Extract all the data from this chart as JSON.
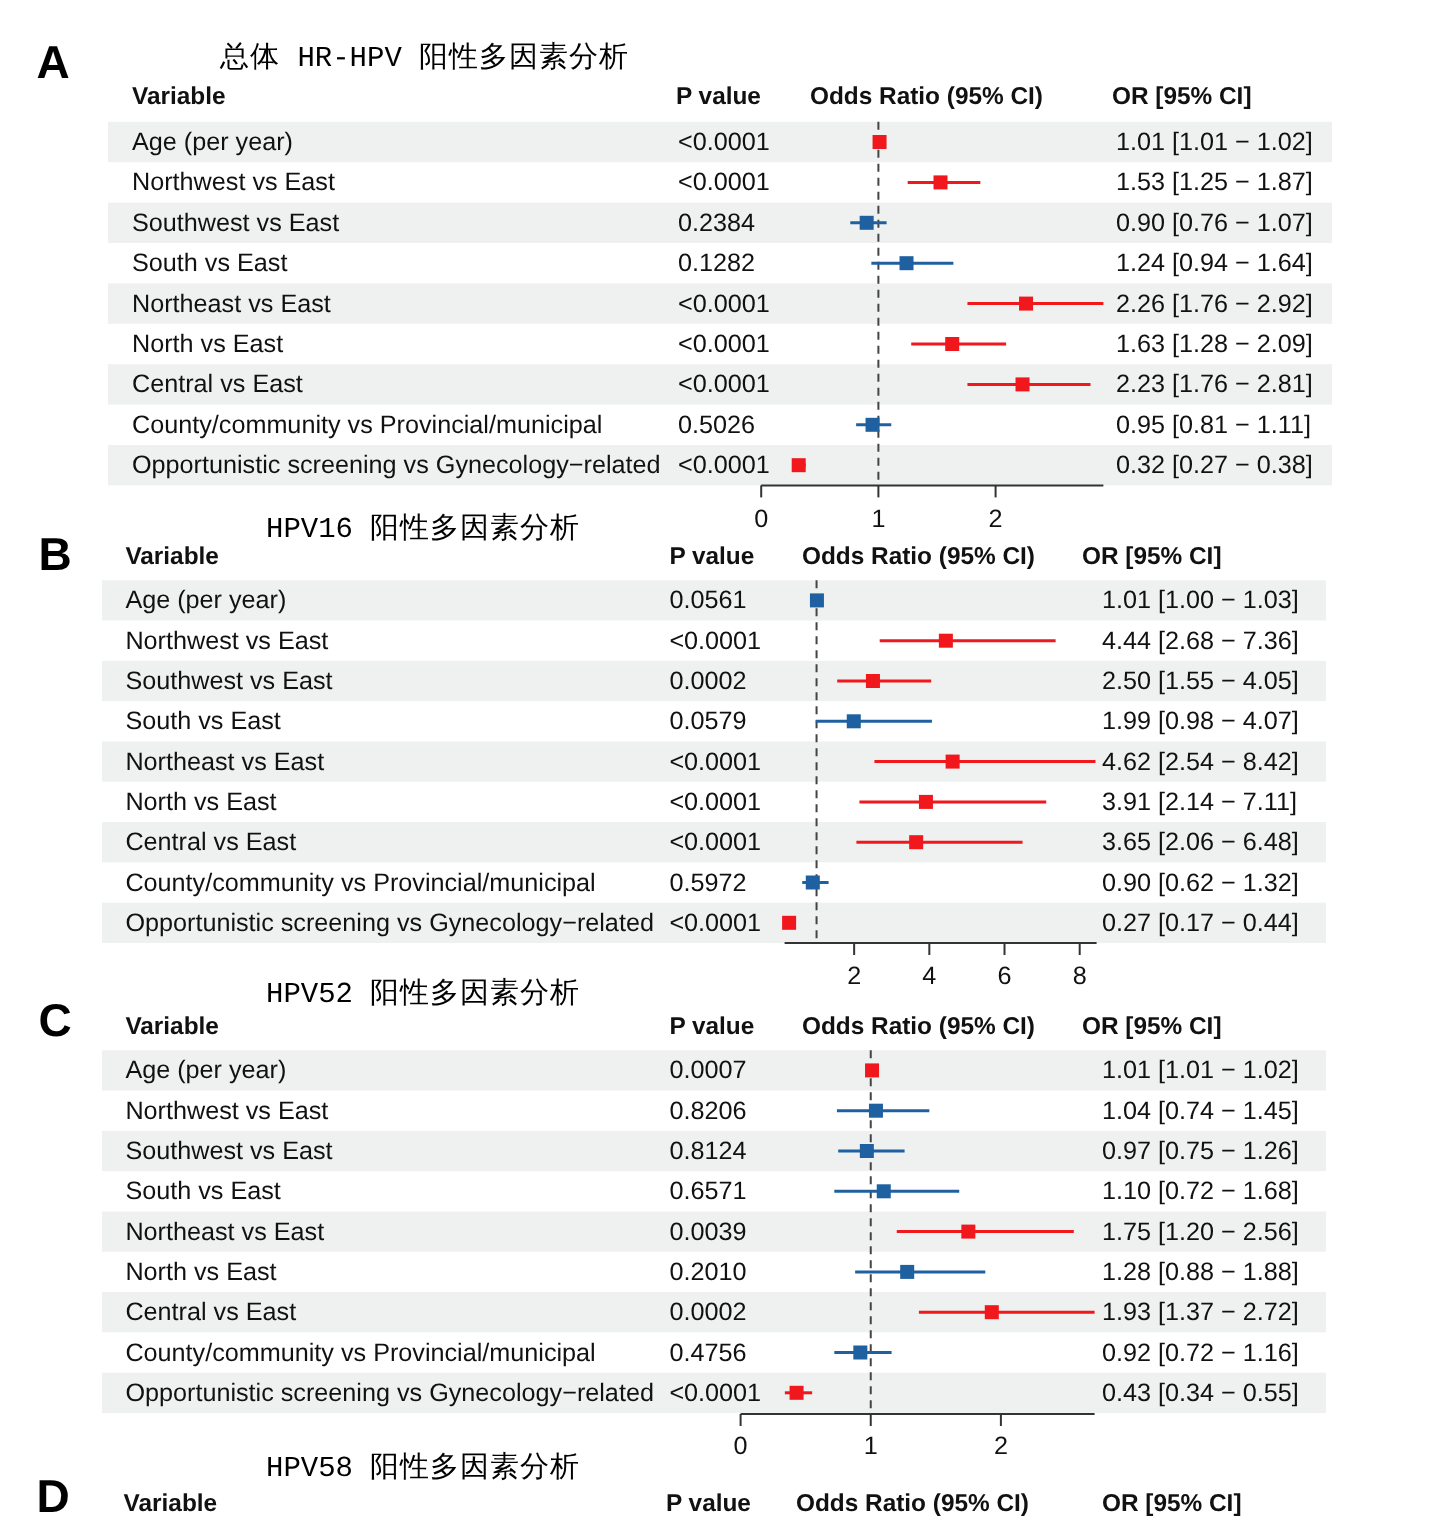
{
  "chart_data": [
    {
      "type": "scatter",
      "orientation": "horizontal",
      "title": "总体 HR-HPV 阳性多因素分析",
      "ylabel": "Variable",
      "xlabel": "Odds Ratio (95% CI)",
      "categories": [
        "Age (per year)",
        "Northwest vs East",
        "Southwest vs East",
        "South vs East",
        "Northeast vs East",
        "North vs East",
        "Central vs East",
        "County/community vs Provincial/municipal",
        "Opportunistic screening vs Gynecology−related"
      ],
      "values": [
        1.01,
        1.53,
        0.9,
        1.24,
        2.26,
        1.63,
        2.23,
        0.95,
        0.32
      ],
      "errors": [
        null,
        [
          1.25,
          1.87
        ],
        [
          0.76,
          1.07
        ],
        [
          0.94,
          1.64
        ],
        [
          1.76,
          2.92
        ],
        [
          1.28,
          2.09
        ],
        [
          1.76,
          2.81
        ],
        [
          0.81,
          1.11
        ],
        [
          0.27,
          0.38
        ]
      ],
      "colors": [
        "#f0171d",
        "#f0171d",
        "#1f60a0",
        "#1f60a0",
        "#f0171d",
        "#f0171d",
        "#f0171d",
        "#1f60a0",
        "#f0171d"
      ],
      "value_labels": [
        "1.01 [1.01 − 1.02]",
        "1.53 [1.25 − 1.87]",
        "0.90 [0.76 − 1.07]",
        "1.24 [0.94 − 1.64]",
        "2.26 [1.76 − 2.92]",
        "1.63 [1.28 − 2.09]",
        "2.23 [1.76 − 2.81]",
        "0.95 [0.81 − 1.11]",
        "0.32 [0.27 − 0.38]"
      ],
      "marker": "square",
      "xlim": [
        0,
        2.92
      ],
      "xticks": [
        0,
        1,
        2
      ],
      "ref_lines": [
        {
          "axis": "x",
          "value": 1,
          "color": "#444444",
          "line_style": "dashed"
        }
      ],
      "annotations": [
        "A",
        "P value",
        "OR [95% CI]",
        "<0.0001",
        "<0.0001",
        "0.2384",
        "0.1282",
        "<0.0001",
        "<0.0001",
        "<0.0001",
        "0.5026",
        "<0.0001"
      ]
    },
    {
      "type": "scatter",
      "orientation": "horizontal",
      "title": "HPV16 阳性多因素分析",
      "ylabel": "Variable",
      "xlabel": "Odds Ratio (95% CI)",
      "categories": [
        "Age (per year)",
        "Northwest vs East",
        "Southwest vs East",
        "South vs East",
        "Northeast vs East",
        "North vs East",
        "Central vs East",
        "County/community vs Provincial/municipal",
        "Opportunistic screening vs Gynecology−related"
      ],
      "values": [
        1.01,
        4.44,
        2.5,
        1.99,
        4.62,
        3.91,
        3.65,
        0.9,
        0.27
      ],
      "errors": [
        null,
        [
          2.68,
          7.36
        ],
        [
          1.55,
          4.05
        ],
        [
          0.98,
          4.07
        ],
        [
          2.54,
          8.42
        ],
        [
          2.14,
          7.11
        ],
        [
          2.06,
          6.48
        ],
        [
          0.62,
          1.32
        ],
        [
          0.17,
          0.44
        ]
      ],
      "colors": [
        "#1f60a0",
        "#f0171d",
        "#f0171d",
        "#1f60a0",
        "#f0171d",
        "#f0171d",
        "#f0171d",
        "#1f60a0",
        "#f0171d"
      ],
      "value_labels": [
        "1.01 [1.00 − 1.03]",
        "4.44 [2.68 − 7.36]",
        "2.50 [1.55 − 4.05]",
        "1.99 [0.98 − 4.07]",
        "4.62 [2.54 − 8.42]",
        "3.91 [2.14 − 7.11]",
        "3.65 [2.06 − 6.48]",
        "0.90 [0.62 − 1.32]",
        "0.27 [0.17 − 0.44]"
      ],
      "marker": "square",
      "xlim": [
        0.15,
        8.45
      ],
      "xticks": [
        2,
        4,
        6,
        8
      ],
      "ref_lines": [
        {
          "axis": "x",
          "value": 1,
          "color": "#444444",
          "line_style": "dashed"
        }
      ],
      "annotations": [
        "B",
        "P value",
        "OR [95% CI]",
        "0.0561",
        "<0.0001",
        "0.0002",
        "0.0579",
        "<0.0001",
        "<0.0001",
        "<0.0001",
        "0.5972",
        "<0.0001"
      ]
    },
    {
      "type": "scatter",
      "orientation": "horizontal",
      "title": "HPV52 阳性多因素分析",
      "ylabel": "Variable",
      "xlabel": "Odds Ratio (95% CI)",
      "categories": [
        "Age (per year)",
        "Northwest vs East",
        "Southwest vs East",
        "South vs East",
        "Northeast vs East",
        "North vs East",
        "Central vs East",
        "County/community vs Provincial/municipal",
        "Opportunistic screening vs Gynecology−related"
      ],
      "values": [
        1.01,
        1.04,
        0.97,
        1.1,
        1.75,
        1.28,
        1.93,
        0.92,
        0.43
      ],
      "errors": [
        null,
        [
          0.74,
          1.45
        ],
        [
          0.75,
          1.26
        ],
        [
          0.72,
          1.68
        ],
        [
          1.2,
          2.56
        ],
        [
          0.88,
          1.88
        ],
        [
          1.37,
          2.72
        ],
        [
          0.72,
          1.16
        ],
        [
          0.34,
          0.55
        ]
      ],
      "colors": [
        "#f0171d",
        "#1f60a0",
        "#1f60a0",
        "#1f60a0",
        "#f0171d",
        "#1f60a0",
        "#f0171d",
        "#1f60a0",
        "#f0171d"
      ],
      "value_labels": [
        "1.01 [1.01 − 1.02]",
        "1.04 [0.74 − 1.45]",
        "0.97 [0.75 − 1.26]",
        "1.10 [0.72 − 1.68]",
        "1.75 [1.20 − 2.56]",
        "1.28 [0.88 − 1.88]",
        "1.93 [1.37 − 2.72]",
        "0.92 [0.72 − 1.16]",
        "0.43 [0.34 − 0.55]"
      ],
      "marker": "square",
      "xlim": [
        0,
        2.72
      ],
      "xticks": [
        0,
        1,
        2
      ],
      "ref_lines": [
        {
          "axis": "x",
          "value": 1,
          "color": "#444444",
          "line_style": "dashed"
        }
      ],
      "annotations": [
        "C",
        "P value",
        "OR [95% CI]",
        "0.0007",
        "0.8206",
        "0.8124",
        "0.6571",
        "0.0039",
        "0.2010",
        "0.0002",
        "0.4756",
        "<0.0001"
      ]
    },
    {
      "type": "other",
      "title": "HPV58 阳性多因素分析",
      "ylabel": "Variable",
      "xlabel": "Odds Ratio (95% CI)",
      "annotations": [
        "D",
        "P value",
        "OR [95% CI]"
      ]
    }
  ]
}
